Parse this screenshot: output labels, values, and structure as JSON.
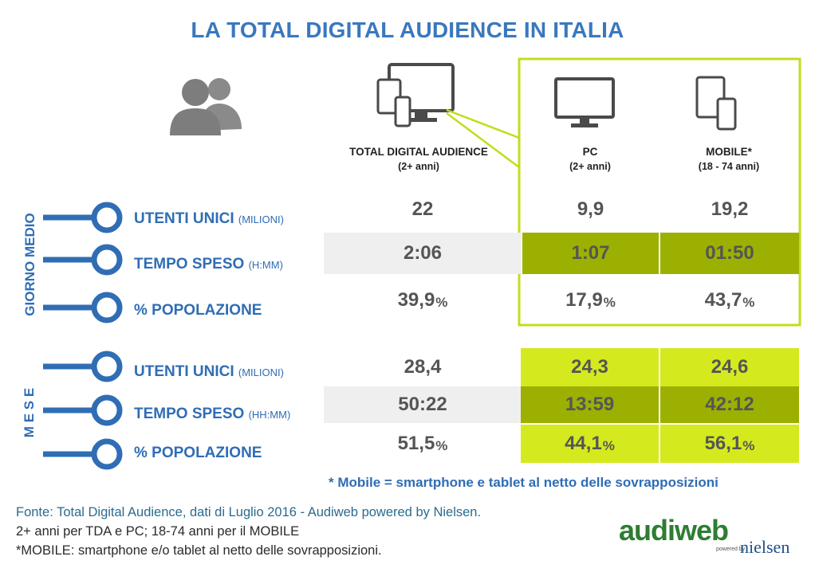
{
  "title": "LA TOTAL DIGITAL AUDIENCE IN ITALIA",
  "icons": [
    "people-icon",
    "multi-device-icon",
    "monitor-icon",
    "mobile-devices-icon"
  ],
  "colors": {
    "title_blue": "#3a78bd",
    "highlight_border": "#c4dc1c",
    "light_green": "#d4ea1e",
    "dark_green": "#9bb000",
    "grey_band": "#efefef"
  },
  "columns": [
    {
      "title": "TOTAL DIGITAL AUDIENCE",
      "sub": "(2+ anni)"
    },
    {
      "title": "PC",
      "sub": "(2+ anni)"
    },
    {
      "title": "MOBILE*",
      "sub": "(18 - 74 anni)"
    }
  ],
  "side_labels": {
    "giorno": "GIORNO MEDIO",
    "mese": "M E S E"
  },
  "rows": [
    {
      "label": "UTENTI UNICI",
      "unit": "(MILIONI)"
    },
    {
      "label": "TEMPO SPESO",
      "unit": "(H:MM)"
    },
    {
      "label": "% POPOLAZIONE",
      "unit": ""
    },
    {
      "label": "UTENTI UNICI",
      "unit": "(MILIONI)"
    },
    {
      "label": "TEMPO SPESO",
      "unit": "(HH:MM)"
    },
    {
      "label": "% POPOLAZIONE",
      "unit": ""
    }
  ],
  "chart_data": {
    "type": "table",
    "title": "LA TOTAL DIGITAL AUDIENCE IN ITALIA",
    "columns": [
      "TOTAL DIGITAL AUDIENCE (2+ anni)",
      "PC (2+ anni)",
      "MOBILE* (18 - 74 anni)"
    ],
    "groups": [
      {
        "name": "GIORNO MEDIO",
        "rows": [
          {
            "metric": "UTENTI UNICI (MILIONI)",
            "values": [
              "22",
              "9,9",
              "19,2"
            ]
          },
          {
            "metric": "TEMPO SPESO (H:MM)",
            "values": [
              "2:06",
              "1:07",
              "01:50"
            ]
          },
          {
            "metric": "% POPOLAZIONE",
            "values": [
              "39,9",
              "17,9",
              "43,7"
            ],
            "suffix": "%"
          }
        ]
      },
      {
        "name": "M E S E",
        "rows": [
          {
            "metric": "UTENTI UNICI (MILIONI)",
            "values": [
              "28,4",
              "24,3",
              "24,6"
            ]
          },
          {
            "metric": "TEMPO SPESO (HH:MM)",
            "values": [
              "50:22",
              "13:59",
              "42:12"
            ]
          },
          {
            "metric": "% POPOLAZIONE",
            "values": [
              "51,5",
              "44,1",
              "56,1"
            ],
            "suffix": "%"
          }
        ]
      }
    ]
  },
  "pct_symbol": "%",
  "note": "* Mobile = smartphone e tablet al netto delle sovrapposizioni",
  "footer": [
    "Fonte: Total Digital Audience, dati di Luglio 2016 - Audiweb powered by Nielsen.",
    "2+ anni per TDA e PC; 18-74 anni per il MOBILE",
    "*MOBILE: smartphone e/o tablet al netto delle sovrapposizioni."
  ],
  "logo": {
    "audiweb": "audiweb",
    "powered": "powered by",
    "nielsen": "nielsen"
  }
}
